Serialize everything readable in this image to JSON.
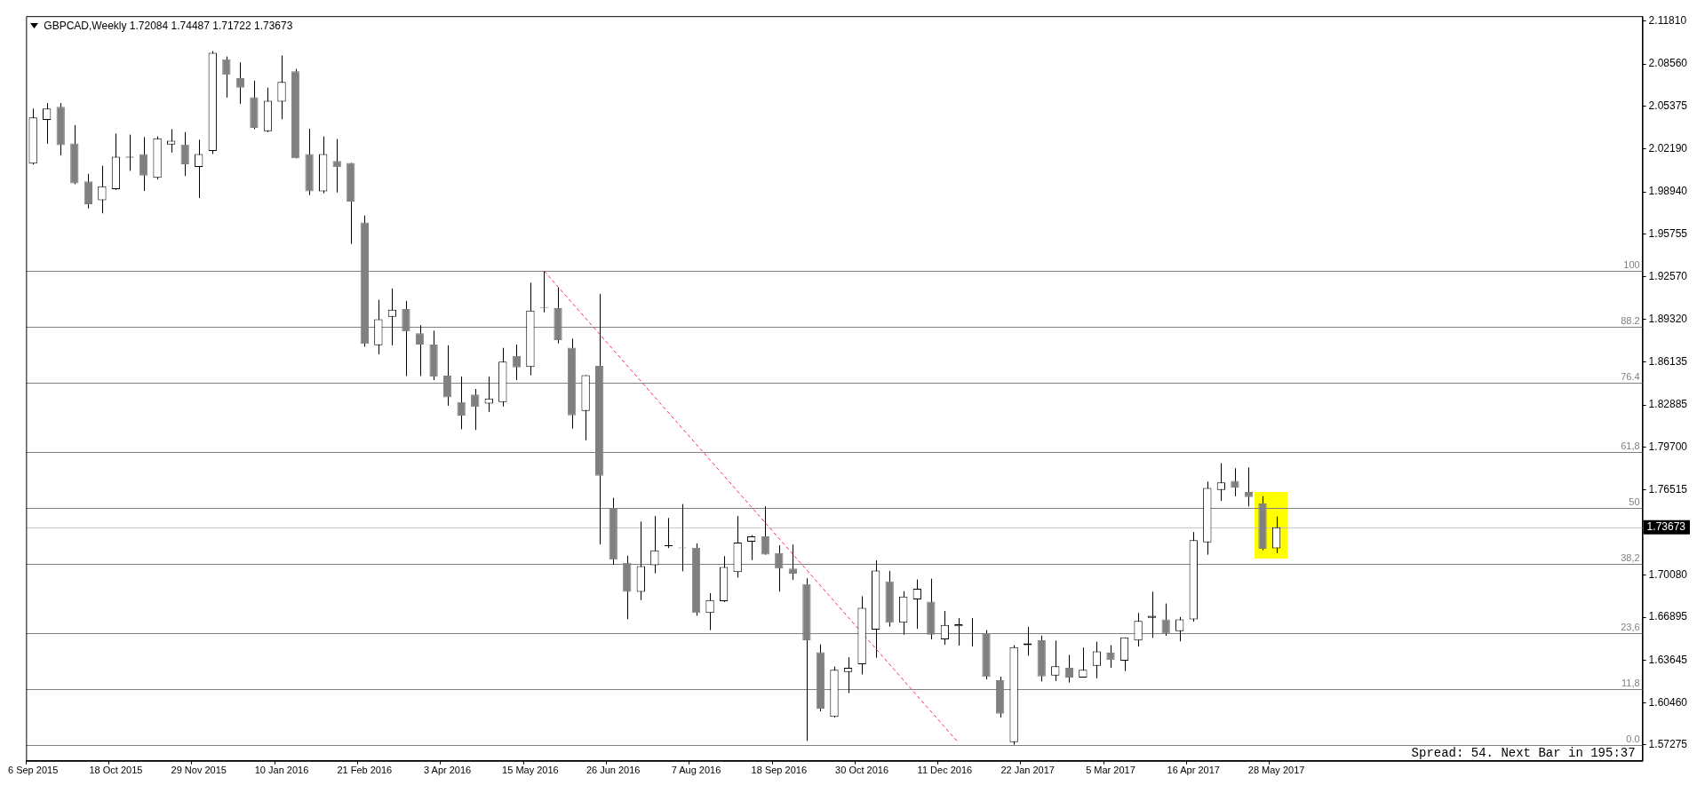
{
  "chart_data": {
    "type": "candlestick",
    "title": "GBPCAD,Weekly  1.72084 1.74487 1.71722 1.73673",
    "colors": [
      "#000000",
      "#000000",
      "#808080",
      "#808080",
      "#808080",
      "#000000",
      "#000000",
      "#000000",
      "#808080",
      "#000000",
      "#000000",
      "#808080",
      "#000000",
      "#000000",
      "#808080",
      "#808080",
      "#808080",
      "#000000",
      "#000000",
      "#808080",
      "#808080",
      "#000000",
      "#808080",
      "#808080",
      "#808080",
      "#000000",
      "#000000",
      "#808080",
      "#808080",
      "#808080",
      "#808080",
      "#808080",
      "#808080",
      "#000000",
      "#000000",
      "#808080",
      "#000000",
      "#808080",
      "#808080",
      "#808080",
      "#000000",
      "#808080",
      "#808080",
      "#808080",
      "#000000",
      "#000000",
      "#000000",
      "#808080",
      "#808080",
      "#000000",
      "#000000",
      "#000000",
      "#000000",
      "#808080",
      "#808080",
      "#808080",
      "#808080",
      "#808080",
      "#000000",
      "#000000",
      "#000000",
      "#000000",
      "#808080",
      "#000000",
      "#000000",
      "#808080",
      "#000000",
      "#000000",
      "#808080",
      "#808080",
      "#808080",
      "#000000",
      "#000000",
      "#808080",
      "#000000",
      "#808080",
      "#000000",
      "#000000",
      "#808080",
      "#000000",
      "#000000",
      "#000000",
      "#808080",
      "#000000",
      "#000000",
      "#000000",
      "#000000",
      "#808080",
      "#808080",
      "#808080",
      "#000000",
      null,
      null,
      null,
      null,
      null,
      null,
      null,
      null,
      null,
      null,
      null,
      null,
      null,
      null,
      null,
      null,
      null,
      null,
      null,
      null,
      null,
      null,
      null,
      null,
      null,
      null
    ],
    "categories": [
      "6 Sep 2015",
      null,
      null,
      null,
      null,
      null,
      "18 Oct 2015",
      null,
      null,
      null,
      null,
      null,
      "29 Nov 2015",
      null,
      null,
      null,
      null,
      null,
      "10 Jan 2016",
      null,
      null,
      null,
      null,
      null,
      "21 Feb 2016",
      null,
      null,
      null,
      null,
      null,
      "3 Apr 2016",
      null,
      null,
      null,
      null,
      null,
      "15 May 2016",
      null,
      null,
      null,
      null,
      null,
      "26 Jun 2016",
      null,
      null,
      null,
      null,
      null,
      "7 Aug 2016",
      null,
      null,
      null,
      null,
      null,
      "18 Sep 2016",
      null,
      null,
      null,
      null,
      null,
      "30 Oct 2016",
      null,
      null,
      null,
      null,
      null,
      "11 Dec 2016",
      null,
      null,
      null,
      null,
      null,
      "22 Jan 2017",
      null,
      null,
      null,
      null,
      null,
      "5 Mar 2017",
      null,
      null,
      null,
      null,
      null,
      "16 Apr 2017",
      null,
      null,
      null,
      null,
      null,
      "28 May 2017",
      null,
      null,
      null,
      null,
      null,
      null,
      null,
      null,
      null,
      null,
      null,
      null,
      null,
      null,
      null,
      null,
      null,
      null,
      null,
      null,
      null,
      null,
      null,
      null,
      null,
      null
    ],
    "ohlc": [
      [
        2.0107,
        2.0521,
        2.0099,
        2.0455
      ],
      [
        2.0435,
        2.0562,
        2.0256,
        2.0521
      ],
      [
        2.0535,
        2.0562,
        2.0168,
        2.0245
      ],
      [
        2.0259,
        2.0397,
        1.9952,
        1.9958
      ],
      [
        1.9972,
        2.003,
        1.977,
        1.9801
      ],
      [
        1.9831,
        2.009,
        1.9732,
        1.9936
      ],
      [
        1.9914,
        2.0333,
        1.9908,
        2.0159
      ],
      [
        2.0151,
        2.0325,
        2.0052,
        2.0157
      ],
      [
        2.0179,
        2.0306,
        1.99,
        2.0016
      ],
      [
        1.9999,
        2.0311,
        1.9988,
        2.0297
      ],
      [
        2.025,
        2.0366,
        2.019,
        2.0278
      ],
      [
        2.025,
        2.0344,
        2.0013,
        2.0101
      ],
      [
        2.0082,
        2.0286,
        1.9847,
        2.0179
      ],
      [
        2.0201,
        2.0954,
        2.0179,
        2.094
      ],
      [
        2.0893,
        2.0913,
        2.0604,
        2.0775
      ],
      [
        2.075,
        2.0869,
        2.0557,
        2.0678
      ],
      [
        2.0606,
        2.0731,
        2.0366,
        2.0375
      ],
      [
        2.035,
        2.0678,
        2.0344,
        2.0579
      ],
      [
        2.0573,
        2.0921,
        2.0441,
        2.0722
      ],
      [
        2.0802,
        2.0819,
        2.0146,
        2.0146
      ],
      [
        2.0179,
        2.0369,
        1.987,
        1.9897
      ],
      [
        1.9897,
        2.0311,
        1.9883,
        2.0179
      ],
      [
        2.0126,
        2.0292,
        1.9889,
        2.0079
      ],
      [
        2.0112,
        2.0112,
        1.9502,
        1.982
      ],
      [
        1.9663,
        1.9715,
        1.8727,
        1.8749
      ],
      [
        1.8738,
        1.908,
        1.8669,
        1.8934
      ],
      [
        1.8953,
        1.9166,
        1.8738,
        1.9006
      ],
      [
        1.9011,
        1.9072,
        1.8506,
        1.8843
      ],
      [
        1.8829,
        1.889,
        1.8506,
        1.8743
      ],
      [
        1.8743,
        1.8848,
        1.8476,
        1.8503
      ],
      [
        1.8509,
        1.8738,
        1.8283,
        1.8346
      ],
      [
        1.831,
        1.8503,
        1.8106,
        1.8208
      ],
      [
        1.8368,
        1.8409,
        1.81,
        1.8274
      ],
      [
        1.8299,
        1.8503,
        1.8236,
        1.8338
      ],
      [
        1.831,
        1.8719,
        1.8277,
        1.8614
      ],
      [
        1.8658,
        1.8743,
        1.8476,
        1.8572
      ],
      [
        1.8575,
        1.921,
        1.8512,
        1.9
      ],
      [
        1.9022,
        1.9297,
        1.8986,
        1.9019
      ],
      [
        1.9017,
        1.9174,
        1.8752,
        1.8777
      ],
      [
        1.872,
        1.8788,
        1.8111,
        1.821
      ],
      [
        1.8243,
        1.8512,
        1.8023,
        1.8512
      ],
      [
        1.8583,
        1.9125,
        1.7238,
        1.7756
      ],
      [
        1.7513,
        1.7589,
        1.7085,
        1.7123
      ],
      [
        1.71,
        1.7153,
        1.6675,
        1.688
      ],
      [
        1.688,
        1.741,
        1.6819,
        1.7074
      ],
      [
        1.7082,
        1.7452,
        1.7021,
        1.7194
      ],
      [
        1.7226,
        1.7437,
        1.7211,
        1.7232
      ],
      [
        1.7214,
        1.7542,
        1.7036,
        1.7208
      ],
      [
        1.7214,
        1.7246,
        1.6701,
        1.6722
      ],
      [
        1.6722,
        1.6871,
        1.6593,
        1.6819
      ],
      [
        1.681,
        1.715,
        1.6804,
        1.7068
      ],
      [
        1.703,
        1.7452,
        1.6989,
        1.7252
      ],
      [
        1.7258,
        1.7308,
        1.712,
        1.7299
      ],
      [
        1.7299,
        1.7525,
        1.7161,
        1.7161
      ],
      [
        1.7173,
        1.7232,
        1.6883,
        1.7056
      ],
      [
        1.7056,
        1.7238,
        1.6971,
        1.7018
      ],
      [
        1.6939,
        1.6983,
        1.5758,
        1.6517
      ],
      [
        1.6426,
        1.6485,
        1.5981,
        1.6001
      ],
      [
        1.594,
        1.6318,
        1.5934,
        1.6294
      ],
      [
        1.6277,
        1.6388,
        1.6118,
        1.6309
      ],
      [
        1.6335,
        1.6848,
        1.6259,
        1.676
      ],
      [
        1.6596,
        1.7117,
        1.6385,
        1.7041
      ],
      [
        1.6959,
        1.7038,
        1.6619,
        1.6649
      ],
      [
        1.6649,
        1.6886,
        1.6558,
        1.6845
      ],
      [
        1.6824,
        1.6974,
        1.6602,
        1.6904
      ],
      [
        1.6807,
        1.698,
        1.6523,
        1.6558
      ],
      [
        1.6523,
        1.6737,
        1.6482,
        1.6631
      ],
      [
        1.6622,
        1.6684,
        1.6476,
        1.6637
      ],
      [
        1.657,
        1.6684,
        1.647,
        1.6564
      ],
      [
        1.657,
        1.6593,
        1.6221,
        1.6241
      ],
      [
        1.6215,
        1.6241,
        1.5934,
        1.5963
      ],
      [
        1.5749,
        1.6479,
        1.5729,
        1.6464
      ],
      [
        1.6479,
        1.6617,
        1.64,
        1.6493
      ],
      [
        1.6517,
        1.6552,
        1.6206,
        1.6244
      ],
      [
        1.625,
        1.6514,
        1.6209,
        1.6321
      ],
      [
        1.6309,
        1.6406,
        1.6198,
        1.6236
      ],
      [
        1.6236,
        1.6461,
        1.6236,
        1.6294
      ],
      [
        1.6324,
        1.6505,
        1.623,
        1.6432
      ],
      [
        1.6423,
        1.6479,
        1.6309,
        1.6367
      ],
      [
        1.6362,
        1.6538,
        1.6285,
        1.6538
      ],
      [
        1.6514,
        1.6722,
        1.6469,
        1.6662
      ],
      [
        1.6686,
        1.6882,
        1.6535,
        1.6701
      ],
      [
        1.6674,
        1.6793,
        1.655,
        1.6567
      ],
      [
        1.6585,
        1.6692,
        1.6508,
        1.6674
      ],
      [
        1.6674,
        1.7331,
        1.6656,
        1.7271
      ],
      [
        1.7253,
        1.7711,
        1.7161,
        1.7663
      ],
      [
        1.7648,
        1.785,
        1.7565,
        1.7705
      ],
      [
        1.7717,
        1.7812,
        1.7601,
        1.7666
      ],
      [
        1.7634,
        1.7818,
        1.7524,
        1.7595
      ],
      [
        1.7547,
        1.7601,
        1.7195,
        1.7205
      ],
      [
        1.72084,
        1.74487,
        1.71722,
        1.73673
      ],
      null,
      null,
      null,
      null,
      null,
      null,
      null,
      null,
      null,
      null,
      null,
      null,
      null,
      null,
      null,
      null,
      null,
      null,
      null,
      null,
      null,
      null,
      null,
      null,
      null,
      null
    ],
    "series": [
      {
        "type": "line",
        "color": "#ff2a55",
        "line_style": "dashed",
        "values": [
          null,
          null,
          null,
          null,
          null,
          null,
          null,
          null,
          null,
          null,
          null,
          null,
          null,
          null,
          null,
          null,
          null,
          null,
          null,
          null,
          null,
          null,
          null,
          null,
          null,
          null,
          null,
          null,
          null,
          null,
          null,
          null,
          null,
          null,
          null,
          null,
          null,
          1.9297,
          null,
          null,
          null,
          null,
          null,
          null,
          null,
          null,
          null,
          null,
          null,
          null,
          null,
          null,
          null,
          null,
          null,
          null,
          null,
          null,
          null,
          null,
          null,
          null,
          null,
          null,
          null,
          null,
          null,
          1.5743,
          null,
          null,
          null,
          null,
          null,
          null,
          null,
          null,
          null,
          null,
          null,
          null,
          null,
          null,
          null,
          null,
          null,
          null,
          null,
          null,
          null,
          null,
          null,
          null,
          null,
          null,
          null,
          null,
          null,
          null,
          null,
          null,
          null,
          null,
          null,
          null,
          null,
          null,
          null,
          null,
          null,
          null,
          null,
          null,
          null,
          null,
          null,
          null,
          null
        ]
      }
    ],
    "ylim": [
      1.5608,
      2.1217
    ],
    "yticks": [
      {
        "value": 2.1181,
        "label": "2.11810"
      },
      {
        "value": 2.0856,
        "label": "2.08560"
      },
      2.05375,
      {
        "value": 2.0219,
        "label": "2.02190"
      },
      {
        "value": 1.9894,
        "label": "1.98940"
      },
      1.95755,
      {
        "value": 1.9257,
        "label": "1.92570"
      },
      {
        "value": 1.8932,
        "label": "1.89320"
      },
      1.86135,
      1.82885,
      {
        "value": 1.797,
        "label": "1.79700"
      },
      1.76515,
      {
        "value": 1.73265,
        "label": null
      },
      {
        "value": 1.7008,
        "label": "1.70080"
      },
      1.66895,
      1.63645,
      {
        "value": 1.6046,
        "label": "1.60460"
      },
      1.57275
    ],
    "ref_lines": [
      {
        "axis": "y",
        "value": 1.9297,
        "color": "#808080"
      },
      {
        "axis": "y",
        "value": 1.8876,
        "color": "#808080"
      },
      {
        "axis": "y",
        "value": 1.8455,
        "color": "#808080"
      },
      {
        "axis": "y",
        "value": 1.7934,
        "color": "#808080"
      },
      {
        "axis": "y",
        "value": 1.7513,
        "color": "#808080"
      },
      {
        "axis": "y",
        "value": 1.7092,
        "color": "#808080"
      },
      {
        "axis": "y",
        "value": 1.6571,
        "color": "#808080"
      },
      {
        "axis": "y",
        "value": 1.615,
        "color": "#808080"
      },
      {
        "axis": "y",
        "value": 1.5729,
        "color": "#808080"
      },
      {
        "axis": "y",
        "value": 1.73673,
        "label": "1.73673",
        "color": "#c8c8c8"
      }
    ],
    "annotations": [
      {
        "text": "100",
        "y": 1.9297
      },
      {
        "text": "88.2",
        "y": 1.8876
      },
      {
        "text": "76.4",
        "y": 1.8455
      },
      {
        "text": "61,8",
        "y": 1.7934
      },
      {
        "text": "50",
        "y": 1.7513
      },
      {
        "text": "38,2",
        "y": 1.7092
      },
      {
        "text": "23,6",
        "y": 1.6571
      },
      {
        "text": "11,8",
        "y": 1.615
      },
      {
        "text": "0.0",
        "y": 1.5729
      },
      "Spread: 54. Next Bar in 195:37"
    ]
  }
}
